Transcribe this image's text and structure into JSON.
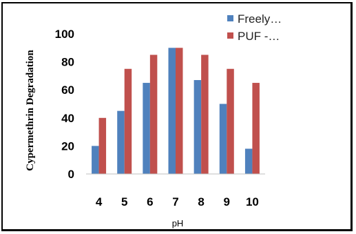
{
  "chart_data": {
    "type": "bar",
    "categories": [
      "4",
      "5",
      "6",
      "7",
      "8",
      "9",
      "10"
    ],
    "series": [
      {
        "name": "Freely…",
        "values": [
          20,
          45,
          65,
          90,
          67,
          50,
          18
        ],
        "color": "#4F81BD"
      },
      {
        "name": "PUF -…",
        "values": [
          40,
          75,
          85,
          90,
          85,
          75,
          65
        ],
        "color": "#C0504D"
      }
    ],
    "yticks": [
      "0",
      "20",
      "40",
      "60",
      "80",
      "100"
    ],
    "ylim": [
      0,
      100
    ],
    "xlabel": "pH",
    "ylabel": "Cypermethrin Degradation",
    "grid": false,
    "legend": "top-right"
  }
}
